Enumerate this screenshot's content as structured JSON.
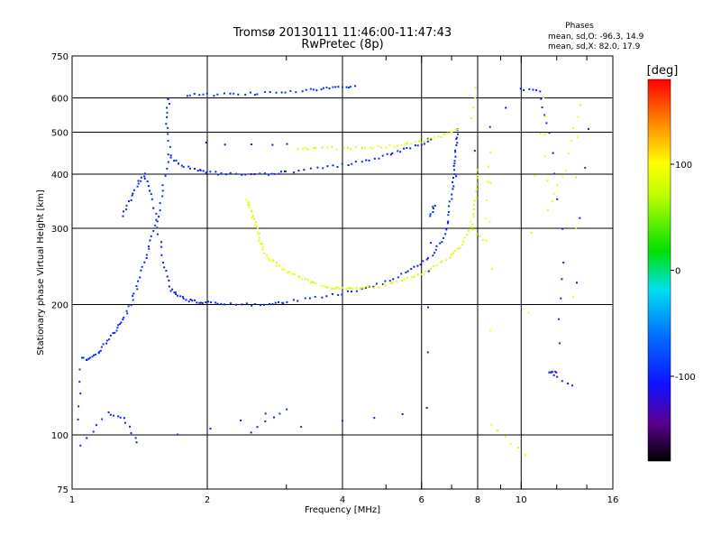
{
  "chart_data": {
    "type": "scatter",
    "title": "Tromsø 20130111 11:46:00-11:47:43",
    "subtitle": "RwPretec (8p)",
    "stats": {
      "heading": "Phases",
      "line1": "mean, sd,O: -96.3, 14.9",
      "line2": "mean, sd,X:  82.0, 17.9"
    },
    "xlabel": "Frequency [MHz]",
    "ylabel": "Stationary phase Virtual Height [km]",
    "xscale": "log",
    "yscale": "log",
    "xlim": [
      1,
      16
    ],
    "ylim": [
      75,
      750
    ],
    "x_ticks": [
      "1",
      "2",
      "4",
      "6",
      "8",
      "10",
      "16"
    ],
    "x_tick_values": [
      1,
      2,
      4,
      6,
      8,
      10,
      16
    ],
    "x_minor_ticks": [
      3,
      5,
      7,
      9,
      12,
      14
    ],
    "x_grid": [
      2,
      4,
      6,
      8,
      10
    ],
    "y_ticks": [
      "75",
      "100",
      "200",
      "300",
      "400",
      "500",
      "600",
      "750"
    ],
    "y_tick_values": [
      75,
      100,
      200,
      300,
      400,
      500,
      600,
      750
    ],
    "y_grid": [
      100,
      200,
      300,
      400,
      500,
      600
    ],
    "grid": true,
    "colorbar": {
      "label": "[deg]",
      "range": [
        -180,
        180
      ],
      "ticks": [
        "100",
        "0",
        "-100"
      ],
      "tick_values": [
        100,
        0,
        -100
      ]
    },
    "series": [
      {
        "phase": -95,
        "points": [
          [
            1.03,
            108
          ],
          [
            1.05,
            150
          ],
          [
            1.1,
            150
          ],
          [
            1.15,
            155
          ],
          [
            1.2,
            165
          ],
          [
            1.25,
            175
          ],
          [
            1.3,
            185
          ],
          [
            1.35,
            200
          ],
          [
            1.4,
            220
          ],
          [
            1.45,
            250
          ],
          [
            1.5,
            280
          ],
          [
            1.55,
            320
          ],
          [
            1.6,
            380
          ],
          [
            1.65,
            460
          ],
          [
            1.62,
            540
          ],
          [
            1.65,
            610
          ]
        ]
      },
      {
        "phase": -100,
        "points": [
          [
            1.3,
            320
          ],
          [
            1.35,
            350
          ],
          [
            1.4,
            380
          ],
          [
            1.45,
            400
          ],
          [
            1.5,
            360
          ],
          [
            1.55,
            300
          ],
          [
            1.6,
            250
          ],
          [
            1.65,
            220
          ],
          [
            1.7,
            210
          ],
          [
            1.8,
            205
          ],
          [
            1.9,
            203
          ],
          [
            2.0,
            202
          ],
          [
            2.2,
            200
          ],
          [
            2.5,
            200
          ],
          [
            2.8,
            201
          ],
          [
            3.0,
            203
          ],
          [
            3.5,
            207
          ],
          [
            4.0,
            212
          ],
          [
            4.5,
            218
          ],
          [
            5.0,
            226
          ],
          [
            5.5,
            236
          ],
          [
            6.0,
            248
          ],
          [
            6.4,
            262
          ],
          [
            6.7,
            285
          ],
          [
            6.9,
            320
          ],
          [
            7.0,
            360
          ],
          [
            7.1,
            400
          ],
          [
            7.15,
            440
          ],
          [
            7.2,
            480
          ],
          [
            7.2,
            520
          ]
        ]
      },
      {
        "phase": -100,
        "points": [
          [
            1.65,
            440
          ],
          [
            1.75,
            420
          ],
          [
            1.9,
            410
          ],
          [
            2.0,
            404
          ],
          [
            2.2,
            400
          ],
          [
            2.5,
            398
          ],
          [
            2.8,
            402
          ],
          [
            3.0,
            405
          ],
          [
            3.5,
            412
          ],
          [
            4.0,
            420
          ],
          [
            4.5,
            430
          ],
          [
            5.0,
            442
          ],
          [
            5.5,
            456
          ],
          [
            6.0,
            470
          ],
          [
            6.4,
            486
          ]
        ]
      },
      {
        "phase": -110,
        "points": [
          [
            2.0,
            470
          ],
          [
            2.2,
            470
          ],
          [
            2.5,
            470
          ],
          [
            2.8,
            470
          ],
          [
            3.0,
            468
          ]
        ]
      },
      {
        "phase": -95,
        "points": [
          [
            1.8,
            610
          ],
          [
            2.0,
            610
          ],
          [
            2.3,
            612
          ],
          [
            2.6,
            615
          ],
          [
            3.0,
            620
          ],
          [
            3.4,
            626
          ],
          [
            3.7,
            630
          ],
          [
            4.0,
            635
          ],
          [
            4.3,
            640
          ]
        ]
      },
      {
        "phase": 85,
        "points": [
          [
            2.45,
            350
          ],
          [
            2.5,
            330
          ],
          [
            2.55,
            310
          ],
          [
            2.6,
            290
          ],
          [
            2.65,
            270
          ],
          [
            2.75,
            255
          ],
          [
            2.9,
            244
          ],
          [
            3.1,
            235
          ],
          [
            3.3,
            228
          ],
          [
            3.5,
            223
          ],
          [
            3.8,
            219
          ],
          [
            4.0,
            218
          ],
          [
            4.3,
            218
          ],
          [
            4.6,
            219
          ],
          [
            5.0,
            222
          ],
          [
            5.5,
            228
          ],
          [
            6.0,
            236
          ],
          [
            6.5,
            246
          ],
          [
            7.0,
            260
          ],
          [
            7.4,
            275
          ],
          [
            7.7,
            300
          ],
          [
            7.85,
            330
          ],
          [
            7.95,
            370
          ],
          [
            8.0,
            420
          ]
        ]
      },
      {
        "phase": 85,
        "points": [
          [
            3.2,
            458
          ],
          [
            3.5,
            460
          ],
          [
            4.0,
            458
          ],
          [
            4.5,
            460
          ],
          [
            5.0,
            463
          ],
          [
            5.5,
            468
          ],
          [
            6.0,
            475
          ],
          [
            6.5,
            488
          ],
          [
            7.0,
            500
          ],
          [
            7.3,
            510
          ]
        ]
      },
      {
        "phase": 80,
        "points": [
          [
            7.75,
            540
          ],
          [
            7.8,
            570
          ],
          [
            7.85,
            600
          ],
          [
            7.9,
            630
          ]
        ]
      },
      {
        "phase": -100,
        "points": [
          [
            1.05,
            95
          ],
          [
            1.2,
            112
          ],
          [
            1.3,
            110
          ],
          [
            1.4,
            96
          ],
          [
            3.0,
            115
          ],
          [
            2.5,
            102
          ],
          [
            6.2,
            115
          ],
          [
            6.3,
            320
          ],
          [
            6.4,
            340
          ],
          [
            10.0,
            630
          ],
          [
            11.0,
            620
          ],
          [
            11.5,
            500
          ],
          [
            12.5,
            250
          ],
          [
            12.0,
            140
          ],
          [
            11.5,
            140
          ],
          [
            13.0,
            130
          ],
          [
            14.5,
            600
          ]
        ]
      },
      {
        "phase": 100,
        "points": [
          [
            7.8,
            300
          ],
          [
            8.3,
            280
          ],
          [
            8.5,
            450
          ],
          [
            8.6,
            105
          ],
          [
            10.2,
            90
          ],
          [
            11.2,
            600
          ],
          [
            11.5,
            330
          ],
          [
            12.5,
            410
          ],
          [
            13.5,
            580
          ],
          [
            13.0,
            115
          ]
        ]
      }
    ]
  }
}
